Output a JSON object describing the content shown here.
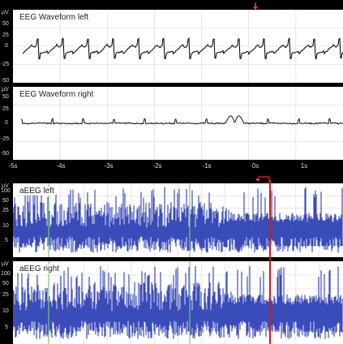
{
  "panels": {
    "eeg_left": {
      "title": "EEG Waveform left",
      "unit": "µV",
      "yticks": [
        "50",
        "25",
        "0",
        "-25",
        "-50"
      ]
    },
    "eeg_right": {
      "title": "EEG Waveform right",
      "unit": "µV",
      "yticks": [
        "50",
        "25",
        "0",
        "-25",
        "-50"
      ]
    },
    "aeeg_left": {
      "title": "aEEG left",
      "unit": "µV",
      "yticks": [
        "100",
        "50",
        "25",
        "10",
        "5"
      ]
    },
    "aeeg_right": {
      "title": "aEEG right",
      "unit": "µV",
      "yticks": [
        "100",
        "50",
        "25",
        "10",
        "5"
      ]
    }
  },
  "time_axis": {
    "ticks": [
      "-5s",
      "-4s",
      "-3s",
      "-2s",
      "-1s",
      "0s",
      "1s"
    ]
  },
  "colors": {
    "background": "#000000",
    "panel": "#ffffff",
    "eeg_trace": "#111111",
    "aeeg_trace": "#2b3db5",
    "cursor": "#cc1a1a",
    "marker": "#e8358a",
    "event_line": "#7bc47b"
  },
  "icons": {
    "top_marker": "arrow-down-icon",
    "cursor_handle": "arrow-down-icon"
  }
}
